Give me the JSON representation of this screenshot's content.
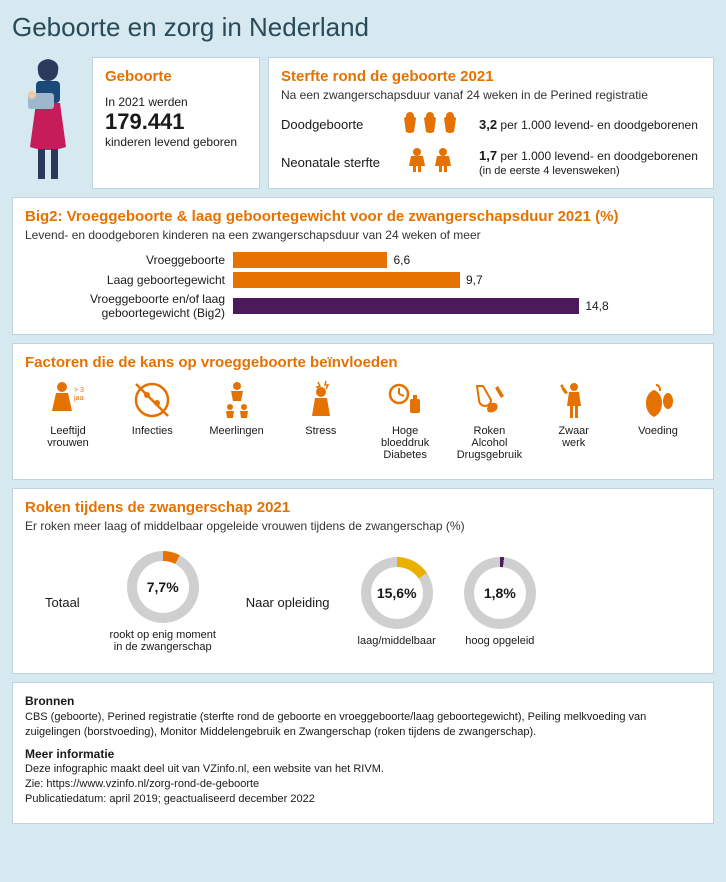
{
  "title": "Geboorte en zorg in Nederland",
  "colors": {
    "orange": "#e57200",
    "purple": "#4a1a5a",
    "donut_grey": "#cfcfcf",
    "panel_border": "#bcd4e0",
    "bg": "#d6e8f0"
  },
  "geboorte": {
    "heading": "Geboorte",
    "line1": "In 2021 werden",
    "number": "179.441",
    "line2": "kinderen levend geboren"
  },
  "sterfte": {
    "heading": "Sterfte rond de geboorte 2021",
    "subtitle": "Na een zwangerschapsduur vanaf 24 weken in de Perined registratie",
    "rows": [
      {
        "label": "Doodgeboorte",
        "value_bold": "3,2",
        "value_rest": " per 1.000 levend- en doodgeborenen",
        "extra": ""
      },
      {
        "label": "Neonatale sterfte",
        "value_bold": "1,7",
        "value_rest": " per 1.000 levend- en doodgeborenen",
        "extra": "(in de eerste 4 levensweken)"
      }
    ]
  },
  "big2": {
    "heading": "Big2: Vroeggeboorte & laag geboortegewicht voor de zwangerschapsduur 2021 (%)",
    "subtitle": "Levend- en doodgeboren kinderen na een zwangerschapsduur van 24 weken of meer",
    "max_scale": 20,
    "bars": [
      {
        "label": "Vroeggeboorte",
        "value": 6.6,
        "display": "6,6",
        "color": "#e57200"
      },
      {
        "label": "Laag geboortegewicht",
        "value": 9.7,
        "display": "9,7",
        "color": "#e57200"
      },
      {
        "label": "Vroeggeboorte en/of laag geboortegewicht (Big2)",
        "value": 14.8,
        "display": "14,8",
        "color": "#4a1a5a"
      }
    ]
  },
  "factors": {
    "heading": "Factoren die de kans op vroeggeboorte beïnvloeden",
    "items": [
      {
        "label": "Leeftijd vrouwen",
        "note": "> 35 jaar"
      },
      {
        "label": "Infecties",
        "note": ""
      },
      {
        "label": "Meerlingen",
        "note": ""
      },
      {
        "label": "Stress",
        "note": ""
      },
      {
        "label": "Hoge bloeddruk Diabetes",
        "note": ""
      },
      {
        "label": "Roken Alcohol Drugsgebruik",
        "note": ""
      },
      {
        "label": "Zwaar werk",
        "note": ""
      },
      {
        "label": "Voeding",
        "note": ""
      }
    ]
  },
  "roken": {
    "heading": "Roken tijdens de zwangerschap 2021",
    "subtitle": "Er roken meer laag of middelbaar opgeleide vrouwen tijdens de zwangerschap (%)",
    "total_label": "Totaal",
    "naar_opleiding_label": "Naar opleiding",
    "donuts": [
      {
        "pct": 7.7,
        "display": "7,7%",
        "color": "#e57200",
        "caption": "rookt op enig moment in de zwangerschap"
      },
      {
        "pct": 15.6,
        "display": "15,6%",
        "color": "#e9b000",
        "caption": "laag/middelbaar"
      },
      {
        "pct": 1.8,
        "display": "1,8%",
        "color": "#4a1a5a",
        "caption": "hoog opgeleid"
      }
    ]
  },
  "bronnen": {
    "heading": "Bronnen",
    "text": "CBS (geboorte), Perined registratie (sterfte rond de geboorte en vroeggeboorte/laag geboortegewicht), Peiling melkvoeding van zuigelingen (borstvoeding), Monitor Middelengebruik en Zwangerschap (roken tijdens de zwangerschap).",
    "more_heading": "Meer informatie",
    "more_text1": "Deze infographic maakt deel uit van VZinfo.nl, een website van het RIVM.",
    "more_text2": "Zie: https://www.vzinfo.nl/zorg-rond-de-geboorte",
    "more_text3": "Publicatiedatum: april 2019; geactualiseerd december 2022"
  }
}
